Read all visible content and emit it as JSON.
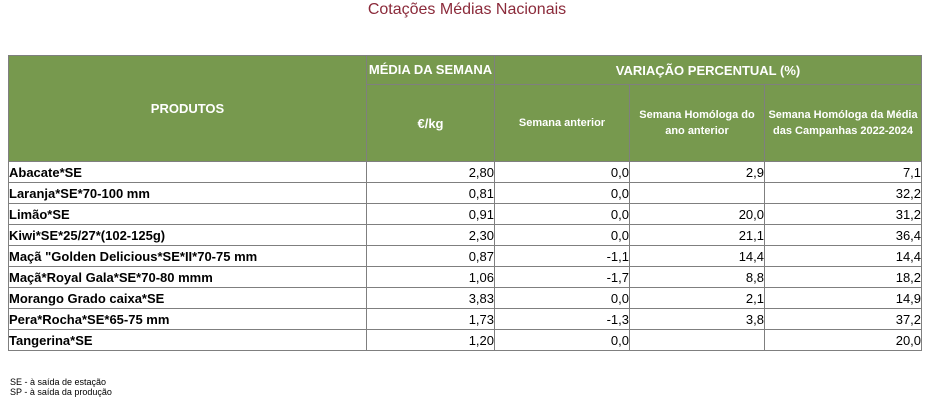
{
  "title": "Cotações Médias Nacionais",
  "headers": {
    "produtos": "PRODUTOS",
    "media_semana": "MÉDIA DA SEMANA",
    "variacao": "VARIAÇÃO PERCENTUAL (%)",
    "unit": "€/kg",
    "semana_anterior": "Semana anterior",
    "semana_homologa": "Semana Homóloga do ano anterior",
    "media_campanhas": "Semana Homóloga da Média das Campanhas 2022-2024"
  },
  "rows": [
    {
      "produto": "Abacate*SE",
      "media": "2,80",
      "semana_anterior": "0,0",
      "homologa": "2,9",
      "campanhas": "7,1"
    },
    {
      "produto": "Laranja*SE*70-100 mm",
      "media": "0,81",
      "semana_anterior": "0,0",
      "homologa": "",
      "campanhas": "32,2"
    },
    {
      "produto": "Limão*SE",
      "media": "0,91",
      "semana_anterior": "0,0",
      "homologa": "20,0",
      "campanhas": "31,2"
    },
    {
      "produto": "Kiwi*SE*25/27*(102-125g)",
      "media": "2,30",
      "semana_anterior": "0,0",
      "homologa": "21,1",
      "campanhas": "36,4"
    },
    {
      "produto": "Maçã \"Golden Delicious*SE*II*70-75 mm",
      "media": "0,87",
      "semana_anterior": "-1,1",
      "homologa": "14,4",
      "campanhas": "14,4"
    },
    {
      "produto": "Maçã*Royal Gala*SE*70-80 mmm",
      "media": "1,06",
      "semana_anterior": "-1,7",
      "homologa": "8,8",
      "campanhas": "18,2"
    },
    {
      "produto": "Morango Grado caixa*SE",
      "media": "3,83",
      "semana_anterior": "0,0",
      "homologa": "2,1",
      "campanhas": "14,9"
    },
    {
      "produto": "Pera*Rocha*SE*65-75 mm",
      "media": "1,73",
      "semana_anterior": "-1,3",
      "homologa": "3,8",
      "campanhas": "37,2"
    },
    {
      "produto": "Tangerina*SE",
      "media": "1,20",
      "semana_anterior": "0,0",
      "homologa": "",
      "campanhas": "20,0"
    }
  ],
  "notes": [
    "SE - à saída de estação",
    "SP - à saída da produção"
  ]
}
